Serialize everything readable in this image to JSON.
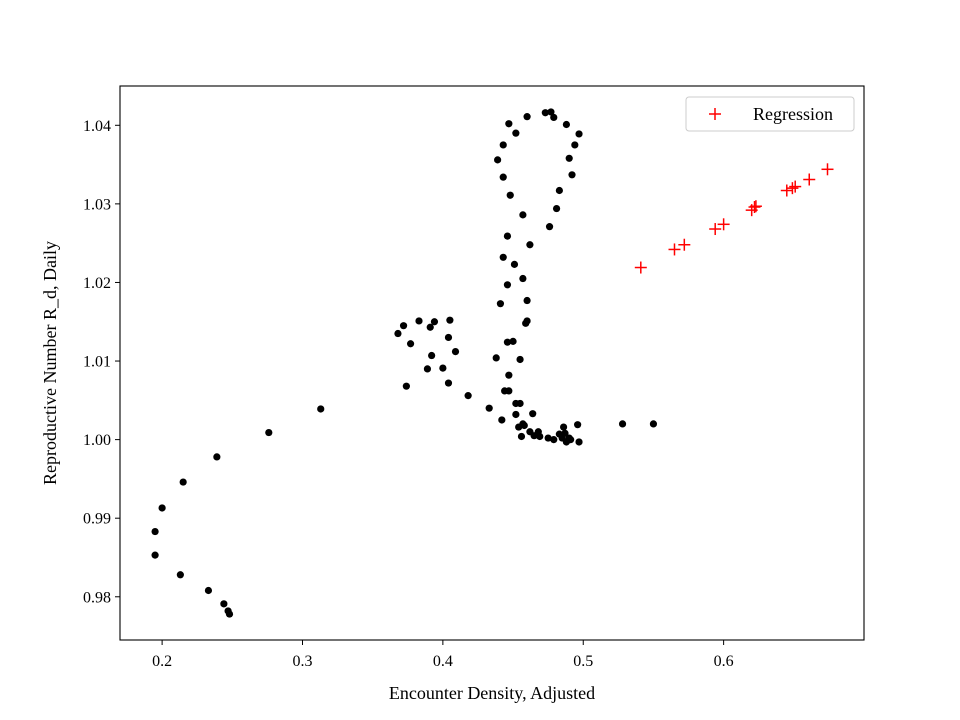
{
  "chart_data": {
    "type": "scatter",
    "xlabel": "Encounter Density, Adjusted",
    "ylabel": "Reproductive Number R_d, Daily",
    "xlim": [
      0.17,
      0.7
    ],
    "ylim": [
      0.9745,
      1.045
    ],
    "x_ticks": [
      0.2,
      0.3,
      0.4,
      0.5,
      0.6
    ],
    "y_ticks": [
      0.98,
      0.99,
      1.0,
      1.01,
      1.02,
      1.03,
      1.04
    ],
    "x_tick_labels": [
      "0.2",
      "0.3",
      "0.4",
      "0.5",
      "0.6"
    ],
    "y_tick_labels": [
      "0.98",
      "0.99",
      "1.00",
      "1.01",
      "1.02",
      "1.03",
      "1.04"
    ],
    "legend_position": "top-right",
    "grid": false,
    "series": [
      {
        "marker": "dot",
        "color": "#000000",
        "points": [
          [
            0.248,
            0.9778
          ],
          [
            0.247,
            0.9782
          ],
          [
            0.244,
            0.9791
          ],
          [
            0.233,
            0.9808
          ],
          [
            0.213,
            0.9828
          ],
          [
            0.195,
            0.9853
          ],
          [
            0.195,
            0.9883
          ],
          [
            0.2,
            0.9913
          ],
          [
            0.215,
            0.9946
          ],
          [
            0.239,
            0.9978
          ],
          [
            0.276,
            1.0009
          ],
          [
            0.313,
            1.0039
          ],
          [
            0.374,
            1.0068
          ],
          [
            0.368,
            1.0135
          ],
          [
            0.372,
            1.0145
          ],
          [
            0.377,
            1.0122
          ],
          [
            0.383,
            1.0151
          ],
          [
            0.391,
            1.0143
          ],
          [
            0.394,
            1.015
          ],
          [
            0.405,
            1.0152
          ],
          [
            0.404,
            1.013
          ],
          [
            0.409,
            1.0112
          ],
          [
            0.392,
            1.0107
          ],
          [
            0.389,
            1.009
          ],
          [
            0.4,
            1.0091
          ],
          [
            0.404,
            1.0072
          ],
          [
            0.418,
            1.0056
          ],
          [
            0.433,
            1.004
          ],
          [
            0.442,
            1.0025
          ],
          [
            0.438,
            1.0104
          ],
          [
            0.446,
            1.0124
          ],
          [
            0.45,
            1.0125
          ],
          [
            0.444,
            1.0062
          ],
          [
            0.447,
            1.0062
          ],
          [
            0.447,
            1.0082
          ],
          [
            0.452,
            1.0032
          ],
          [
            0.452,
            1.0046
          ],
          [
            0.455,
            1.0046
          ],
          [
            0.454,
            1.0016
          ],
          [
            0.456,
            1.0004
          ],
          [
            0.457,
            1.002
          ],
          [
            0.458,
            1.0018
          ],
          [
            0.462,
            1.001
          ],
          [
            0.464,
            1.0033
          ],
          [
            0.465,
            1.0005
          ],
          [
            0.468,
            1.001
          ],
          [
            0.469,
            1.0004
          ],
          [
            0.475,
            1.0002
          ],
          [
            0.479,
            1.0
          ],
          [
            0.483,
            1.0007
          ],
          [
            0.485,
            1.0002
          ],
          [
            0.486,
            1.0016
          ],
          [
            0.487,
            1.0008
          ],
          [
            0.488,
            0.9997
          ],
          [
            0.49,
            1.0002
          ],
          [
            0.491,
            1.0
          ],
          [
            0.496,
            1.0019
          ],
          [
            0.497,
            0.9997
          ],
          [
            0.455,
            1.0102
          ],
          [
            0.459,
            1.0148
          ],
          [
            0.46,
            1.0151
          ],
          [
            0.46,
            1.0177
          ],
          [
            0.457,
            1.0205
          ],
          [
            0.451,
            1.0223
          ],
          [
            0.443,
            1.0232
          ],
          [
            0.446,
            1.0197
          ],
          [
            0.441,
            1.0173
          ],
          [
            0.446,
            1.0259
          ],
          [
            0.462,
            1.0248
          ],
          [
            0.457,
            1.0286
          ],
          [
            0.448,
            1.0311
          ],
          [
            0.443,
            1.0334
          ],
          [
            0.439,
            1.0356
          ],
          [
            0.443,
            1.0375
          ],
          [
            0.447,
            1.0402
          ],
          [
            0.452,
            1.039
          ],
          [
            0.46,
            1.0411
          ],
          [
            0.473,
            1.0416
          ],
          [
            0.477,
            1.0417
          ],
          [
            0.479,
            1.041
          ],
          [
            0.488,
            1.0401
          ],
          [
            0.497,
            1.0389
          ],
          [
            0.494,
            1.0375
          ],
          [
            0.49,
            1.0358
          ],
          [
            0.492,
            1.0337
          ],
          [
            0.483,
            1.0317
          ],
          [
            0.481,
            1.0294
          ],
          [
            0.476,
            1.0271
          ],
          [
            0.528,
            1.002
          ],
          [
            0.55,
            1.002
          ]
        ]
      },
      {
        "name": "Regression",
        "marker": "plus",
        "color": "#ff0000",
        "points": [
          [
            0.541,
            1.0219
          ],
          [
            0.565,
            1.0242
          ],
          [
            0.572,
            1.0248
          ],
          [
            0.594,
            1.0268
          ],
          [
            0.6,
            1.0274
          ],
          [
            0.62,
            1.0292
          ],
          [
            0.622,
            1.0296
          ],
          [
            0.623,
            1.0297
          ],
          [
            0.645,
            1.0317
          ],
          [
            0.649,
            1.032
          ],
          [
            0.651,
            1.0322
          ],
          [
            0.661,
            1.0331
          ],
          [
            0.674,
            1.0344
          ]
        ]
      }
    ]
  }
}
